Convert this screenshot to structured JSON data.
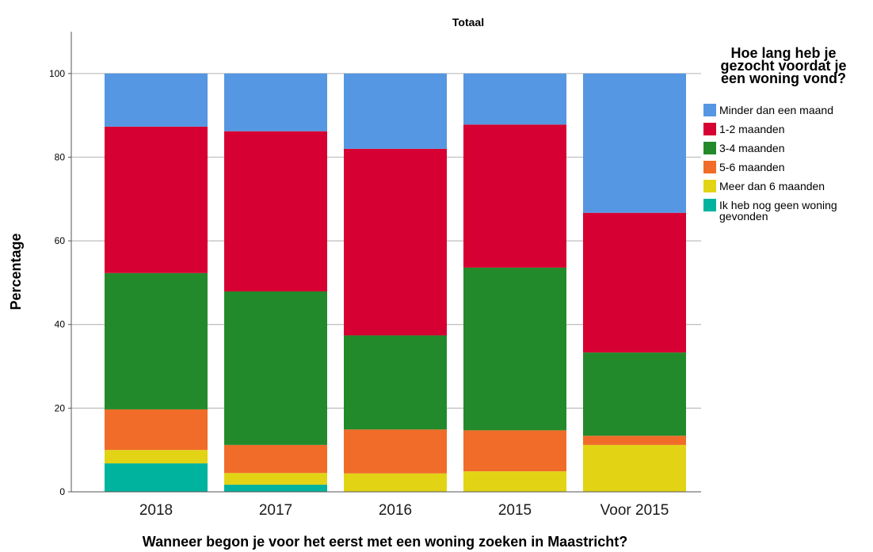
{
  "chart_data": {
    "type": "bar",
    "stacked": true,
    "title": "Totaal",
    "xlabel": "Wanneer begon je voor het eerst met een woning zoeken in Maastricht?",
    "ylabel": "Percentage",
    "ylim": [
      0,
      110
    ],
    "yticks": [
      0,
      20,
      40,
      60,
      80,
      100
    ],
    "grid": true,
    "legend_position": "right",
    "legend_title_lines": [
      "Hoe lang heb je",
      "gezocht voordat je",
      "een woning vond?"
    ],
    "categories": [
      "2018",
      "2017",
      "2016",
      "2015",
      "Voor 2015"
    ],
    "series": [
      {
        "name": "Minder dan een maand",
        "color": "#5597e2",
        "values": [
          12.7,
          13.8,
          18.0,
          12.2,
          33.3
        ]
      },
      {
        "name": "1-2 maanden",
        "color": "#d60032",
        "values": [
          35.0,
          38.3,
          44.6,
          34.2,
          33.4
        ]
      },
      {
        "name": "3-4 maanden",
        "color": "#238a2b",
        "values": [
          32.6,
          36.7,
          22.5,
          38.9,
          19.9
        ]
      },
      {
        "name": "5-6 maanden",
        "color": "#f06c28",
        "values": [
          9.7,
          6.7,
          10.5,
          9.8,
          2.2
        ]
      },
      {
        "name": "Meer dan 6 maanden",
        "color": "#e2d414",
        "values": [
          3.2,
          2.8,
          4.4,
          4.9,
          11.2
        ]
      },
      {
        "name": "Ik heb nog geen woning gevonden",
        "color": "#00b39f",
        "values": [
          6.8,
          1.7,
          0,
          0,
          0
        ]
      }
    ],
    "legend_lines": [
      [
        "Minder dan een maand"
      ],
      [
        "1-2 maanden"
      ],
      [
        "3-4 maanden"
      ],
      [
        "5-6 maanden"
      ],
      [
        "Meer dan 6 maanden"
      ],
      [
        "Ik heb nog geen woning",
        "gevonden"
      ]
    ]
  }
}
